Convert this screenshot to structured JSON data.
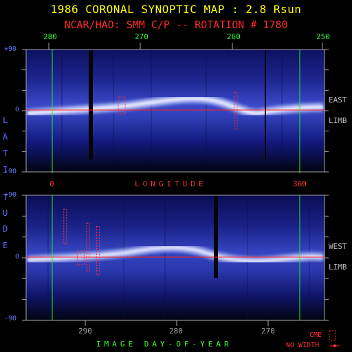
{
  "title": "1986 CORONAL SYNOPTIC MAP : 2.8 Rsun",
  "subtitle": "NCAR/HAO: SMM C/P -- ROTATION # 1780",
  "colors": {
    "title": "#ffff00",
    "subtitle": "#ff2020",
    "top_ticks": "#33ff33",
    "longitude_labels": "#ff3333",
    "lat_labels": "#6677ff",
    "side_letters": "#5566ff",
    "limb_labels": "#bbbbbb",
    "day_axis_word": "#33ff33",
    "legend": "#ff3333",
    "marker_lines": "#22ee22",
    "equator": "#ff2020",
    "map_background": "#1a1fa0"
  },
  "top_axis": {
    "ticks": [
      "280",
      "270",
      "260",
      "250"
    ]
  },
  "longitude_axis": {
    "left": "0",
    "word": "LONGITUDE",
    "right": "360"
  },
  "lat_axis": {
    "top_panel": [
      "+90",
      "0",
      "-90"
    ],
    "bottom_panel": [
      "+90",
      "0",
      "-90"
    ]
  },
  "side_label": [
    "L",
    "A",
    "T",
    "I",
    "T",
    "U",
    "D",
    "E"
  ],
  "limb_labels": {
    "top": [
      "EAST",
      "LIMB"
    ],
    "bottom": [
      "WEST",
      "LIMB"
    ]
  },
  "bottom_axis": {
    "ticks": [
      "290",
      "280",
      "270"
    ],
    "word": "IMAGE DAY-OF-YEAR"
  },
  "legend": {
    "cme_label": "CME",
    "nowidth_label": "NO WIDTH"
  },
  "chart_data": {
    "type": "heatmap",
    "title": "1986 CORONAL SYNOPTIC MAP : 2.8 Rsun",
    "subtitle": "NCAR/HAO: SMM C/P -- ROTATION # 1780",
    "panels": [
      {
        "name": "EAST LIMB",
        "ylabel": "LATITUDE",
        "ylim": [
          -90,
          90
        ],
        "top_ticks_day": [
          280,
          270,
          260,
          250
        ],
        "longitude_range": [
          0,
          360
        ],
        "bright_band_lat": 0,
        "cme_events": [
          {
            "day": 272,
            "lat_min": -5,
            "lat_max": 20
          },
          {
            "day": 259.5,
            "lat_min": -27,
            "lat_max": 27
          }
        ]
      },
      {
        "name": "WEST LIMB",
        "ylabel": "LATITUDE",
        "ylim": [
          -90,
          90
        ],
        "day_ticks": [
          290,
          280,
          270
        ],
        "xlabel": "IMAGE DAY-OF-YEAR",
        "bright_band_lat": 0,
        "cme_events": [
          {
            "day": 292.2,
            "lat_min": 20,
            "lat_max": 70
          },
          {
            "day": 290.5,
            "lat_min": -10,
            "lat_max": 10
          },
          {
            "day": 289.7,
            "lat_min": -20,
            "lat_max": 50
          },
          {
            "day": 288.6,
            "lat_min": -25,
            "lat_max": 45
          }
        ]
      }
    ]
  }
}
